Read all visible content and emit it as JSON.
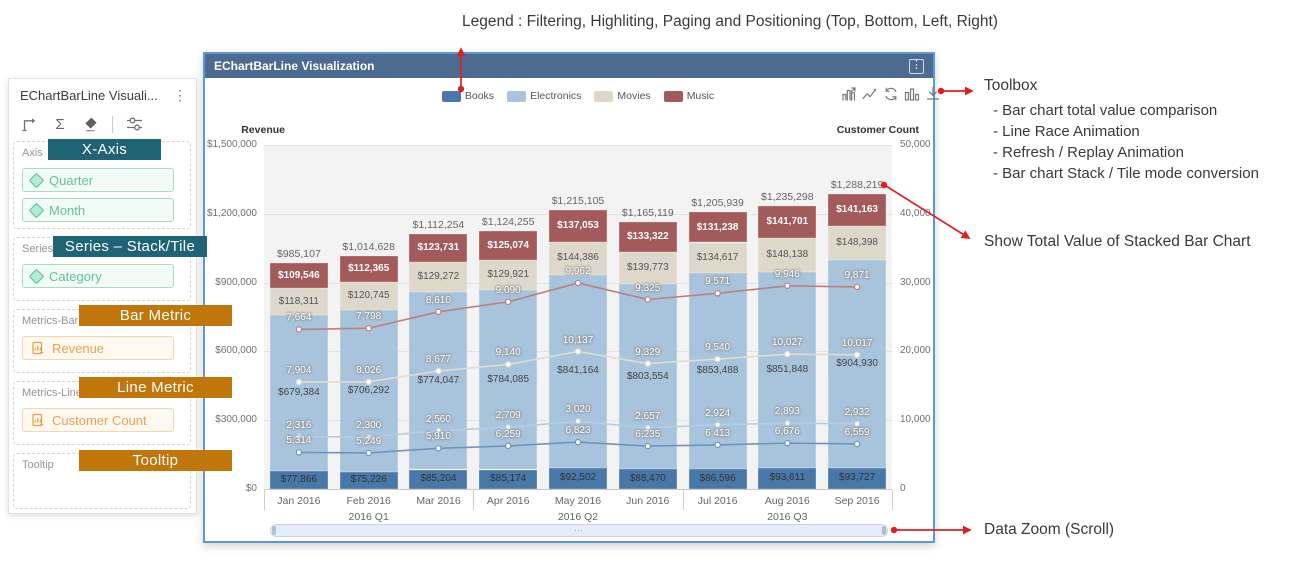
{
  "annotations": {
    "legend_note": "Legend : Filtering, Highliting, Paging and Positioning (Top, Bottom, Left, Right)",
    "toolbox_title": "Toolbox",
    "toolbox_items": [
      "- Bar chart total value comparison",
      "- Line Race Animation",
      "- Refresh / Replay Animation",
      "- Bar chart Stack / Tile mode conversion"
    ],
    "show_total_note": "Show Total Value of Stacked Bar Chart",
    "data_zoom_note": "Data Zoom (Scroll)",
    "badges": {
      "x_axis": "X-Axis",
      "series": "Series – Stack/Tile",
      "bar_metric": "Bar Metric",
      "line_metric": "Line Metric",
      "tooltip": "Tooltip"
    }
  },
  "colors": {
    "badge_teal": "#1e6474",
    "badge_orange": "#c1760b",
    "annotation_red": "#e01f1f",
    "window_border": "#5b9bd5",
    "titlebar_bg": "#4d6a90",
    "dimension_green": "#5ec497",
    "measure_orange": "#eda14f"
  },
  "panel": {
    "title": "EChartBarLine Visuali...",
    "menu_icon": "⋮",
    "toolbar_icons": [
      "pivot-icon",
      "sigma-icon",
      "eraser-icon",
      "sliders-icon"
    ],
    "sections": [
      {
        "label": "Axis",
        "items": [
          {
            "text": "Quarter"
          },
          {
            "text": "Month"
          }
        ]
      },
      {
        "label": "Series",
        "items": [
          {
            "text": "Category"
          }
        ]
      },
      {
        "label": "Metrics-Bar",
        "items": [
          {
            "text": "Revenue"
          }
        ]
      },
      {
        "label": "Metrics-Line",
        "items": [
          {
            "text": "Customer Count"
          }
        ]
      },
      {
        "label": "Tooltip",
        "items": []
      }
    ]
  },
  "window": {
    "title": "EChartBarLine Visualization",
    "menu_icon": "⋮",
    "toolbox_icons": [
      "bar-total-icon",
      "line-race-icon",
      "refresh-icon",
      "stack-bar-icon",
      "download-icon"
    ]
  },
  "chart_data": {
    "type": "bar+line",
    "title": "",
    "categories": [
      "Jan 2016",
      "Feb 2016",
      "Mar 2016",
      "Apr 2016",
      "May 2016",
      "Jun 2016",
      "Jul 2016",
      "Aug 2016",
      "Sep 2016"
    ],
    "quarter_groups": [
      {
        "label": "2016 Q1",
        "months": [
          0,
          2
        ]
      },
      {
        "label": "2016 Q2",
        "months": [
          3,
          5
        ]
      },
      {
        "label": "2016 Q3",
        "months": [
          6,
          8
        ]
      }
    ],
    "left_axis": {
      "title": "Revenue",
      "min": 0,
      "max": 1500000,
      "tick_labels": [
        "$0",
        "$300,000",
        "$600,000",
        "$900,000",
        "$1,200,000",
        "$1,500,000"
      ]
    },
    "right_axis": {
      "title": "Customer Count",
      "min": 0,
      "max": 50000,
      "tick_labels": [
        "0",
        "10,000",
        "20,000",
        "30,000",
        "40,000",
        "50,000"
      ]
    },
    "bar_series": [
      {
        "name": "Books",
        "color": "#4878a8",
        "label_color": "#333333",
        "values": [
          77866,
          75226,
          85204,
          85174,
          92502,
          88470,
          86596,
          93611,
          93727
        ]
      },
      {
        "name": "Electronics",
        "color": "#a8c4dc",
        "label_color": "#444444",
        "values": [
          679384,
          706292,
          774047,
          784085,
          841164,
          803554,
          853488,
          851848,
          904930
        ]
      },
      {
        "name": "Movies",
        "color": "#ded8ca",
        "label_color": "#555555",
        "values": [
          118311,
          120745,
          129272,
          129921,
          144386,
          139773,
          134617,
          148138,
          148398
        ]
      },
      {
        "name": "Music",
        "color": "#a25a5a",
        "label_color": "#ffffff",
        "values": [
          109546,
          112365,
          123731,
          125074,
          137053,
          133322,
          131238,
          141701,
          141163
        ]
      }
    ],
    "bar_totals": [
      985107,
      1014628,
      1112254,
      1124255,
      1215105,
      1165119,
      1205939,
      1235298,
      1288219
    ],
    "lines_stacked": true,
    "line_series": [
      {
        "name": "Books",
        "color": "#6f94bd",
        "values": [
          5314,
          5249,
          5910,
          6259,
          6823,
          6235,
          6413,
          6676,
          6559
        ]
      },
      {
        "name": "Electronics",
        "color": "#b5cde3",
        "values": [
          2316,
          2300,
          2560,
          2709,
          3020,
          2657,
          2924,
          2893,
          2932
        ]
      },
      {
        "name": "Movies",
        "color": "#e3dccd",
        "values": [
          7904,
          8026,
          8677,
          9140,
          10137,
          9329,
          9540,
          10027,
          10017
        ]
      },
      {
        "name": "Music",
        "color": "#bd7f7f",
        "values": [
          7664,
          7798,
          8610,
          9090,
          9962,
          9325,
          9571,
          9946,
          9871
        ]
      }
    ],
    "legend": {
      "labels": [
        "Books",
        "Electronics",
        "Movies",
        "Music"
      ],
      "position": "top"
    },
    "grid": true
  }
}
